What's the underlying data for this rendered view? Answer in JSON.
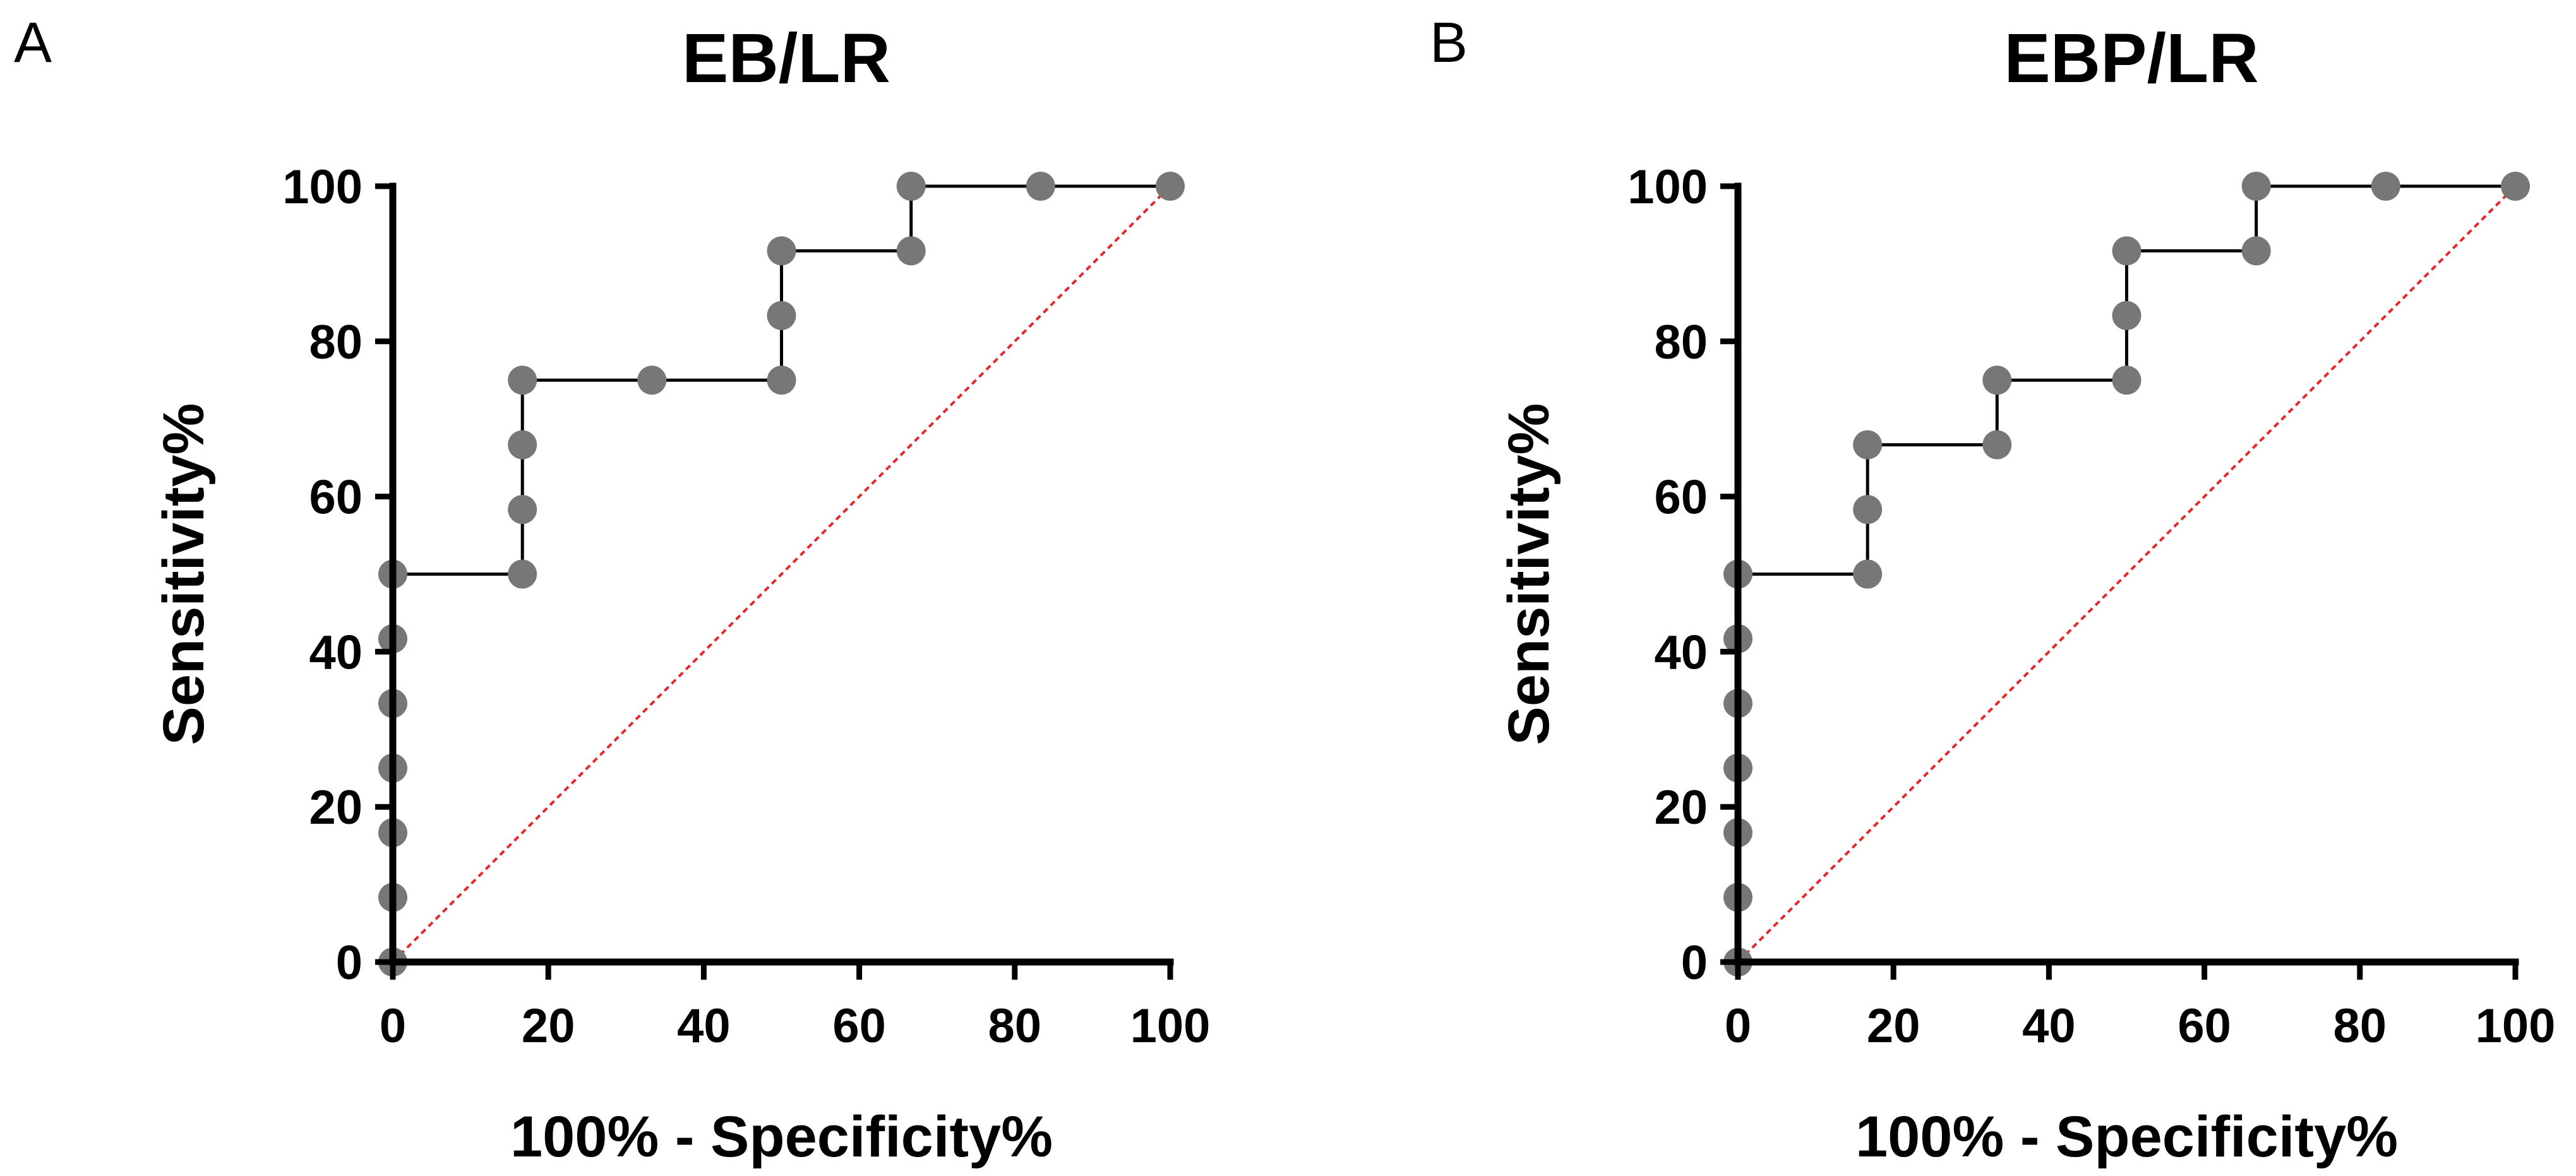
{
  "chart_data": [
    {
      "type": "line",
      "panel_label": "A",
      "title": "EB/LR",
      "xlabel": "100% - Specificity%",
      "ylabel": "Sensitivity%",
      "xlim": [
        0,
        100
      ],
      "ylim": [
        0,
        100
      ],
      "x_ticks": [
        0,
        20,
        40,
        60,
        80,
        100
      ],
      "y_ticks": [
        0,
        20,
        40,
        60,
        80,
        100
      ],
      "x_tick_labels": [
        "0",
        "20",
        "40",
        "60",
        "80",
        "100"
      ],
      "y_tick_labels": [
        "0",
        "20",
        "40",
        "60",
        "80",
        "100"
      ],
      "grid": false,
      "series": [
        {
          "name": "ROC curve",
          "style": "step",
          "color": "#000000",
          "marker_color": "#777777",
          "points": [
            [
              0,
              0
            ],
            [
              0,
              8.33
            ],
            [
              0,
              16.67
            ],
            [
              0,
              25
            ],
            [
              0,
              33.33
            ],
            [
              0,
              41.67
            ],
            [
              0,
              50
            ],
            [
              16.67,
              50
            ],
            [
              16.67,
              58.33
            ],
            [
              16.67,
              66.67
            ],
            [
              16.67,
              75
            ],
            [
              33.33,
              75
            ],
            [
              50,
              75
            ],
            [
              50,
              83.33
            ],
            [
              50,
              91.67
            ],
            [
              66.67,
              91.67
            ],
            [
              66.67,
              100
            ],
            [
              83.33,
              100
            ],
            [
              100,
              100
            ]
          ]
        },
        {
          "name": "Reference line",
          "style": "dashed",
          "color": "#e8262a",
          "points": [
            [
              0,
              0
            ],
            [
              100,
              100
            ]
          ]
        }
      ]
    },
    {
      "type": "line",
      "panel_label": "B",
      "title": "EBP/LR",
      "xlabel": "100% - Specificity%",
      "ylabel": "Sensitivity%",
      "xlim": [
        0,
        100
      ],
      "ylim": [
        0,
        100
      ],
      "x_ticks": [
        0,
        20,
        40,
        60,
        80,
        100
      ],
      "y_ticks": [
        0,
        20,
        40,
        60,
        80,
        100
      ],
      "x_tick_labels": [
        "0",
        "20",
        "40",
        "60",
        "80",
        "100"
      ],
      "y_tick_labels": [
        "0",
        "20",
        "40",
        "60",
        "80",
        "100"
      ],
      "grid": false,
      "series": [
        {
          "name": "ROC curve",
          "style": "step",
          "color": "#000000",
          "marker_color": "#777777",
          "points": [
            [
              0,
              0
            ],
            [
              0,
              8.33
            ],
            [
              0,
              16.67
            ],
            [
              0,
              25
            ],
            [
              0,
              33.33
            ],
            [
              0,
              41.67
            ],
            [
              0,
              50
            ],
            [
              16.67,
              50
            ],
            [
              16.67,
              58.33
            ],
            [
              16.67,
              66.67
            ],
            [
              33.33,
              66.67
            ],
            [
              33.33,
              75
            ],
            [
              50,
              75
            ],
            [
              50,
              83.33
            ],
            [
              50,
              91.67
            ],
            [
              66.67,
              91.67
            ],
            [
              66.67,
              100
            ],
            [
              83.33,
              100
            ],
            [
              100,
              100
            ]
          ]
        },
        {
          "name": "Reference line",
          "style": "dashed",
          "color": "#e8262a",
          "points": [
            [
              0,
              0
            ],
            [
              100,
              100
            ]
          ]
        }
      ]
    }
  ]
}
